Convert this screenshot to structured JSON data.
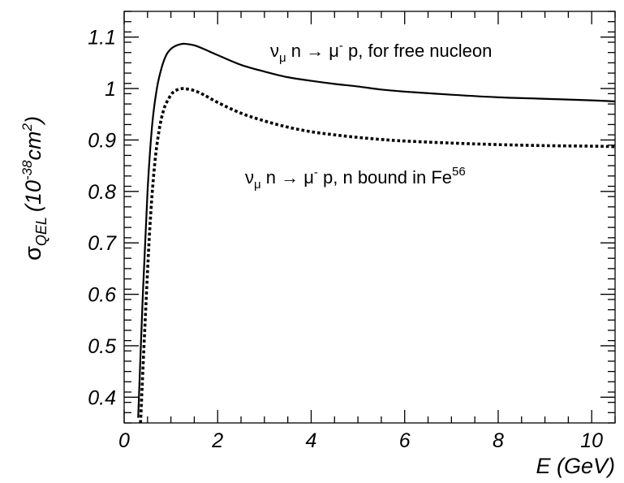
{
  "chart_data": {
    "type": "line",
    "xlabel": "E (GeV)",
    "ylabel": {
      "symbol": "σ",
      "subscript": "QEL",
      "unit_base": "(10",
      "unit_exp": "-38",
      "unit_rest": "cm",
      "unit_pow": "2",
      "unit_close": ")"
    },
    "xlim": [
      0,
      10.5
    ],
    "ylim": [
      0.35,
      1.15
    ],
    "x_ticks": [
      0,
      2,
      4,
      6,
      8,
      10
    ],
    "x_tick_labels": [
      "0",
      "2",
      "4",
      "6",
      "8",
      "10"
    ],
    "y_ticks": [
      0.4,
      0.5,
      0.6,
      0.7,
      0.8,
      0.9,
      1.0,
      1.1
    ],
    "y_tick_labels": [
      "0.4",
      "0.5",
      "0.6",
      "0.7",
      "0.8",
      "0.9",
      "1",
      "1.1"
    ],
    "grid": false,
    "series": [
      {
        "style": "solid",
        "color": "#000000",
        "x": [
          0.3,
          0.4,
          0.5,
          0.6,
          0.7,
          0.8,
          0.9,
          1.0,
          1.1,
          1.2,
          1.3,
          1.5,
          1.7,
          2.0,
          2.5,
          3.0,
          3.5,
          4.0,
          4.5,
          5.0,
          5.5,
          6.0,
          7.0,
          8.0,
          9.0,
          10.0,
          10.5
        ],
        "y": [
          0.36,
          0.6,
          0.8,
          0.93,
          1.0,
          1.04,
          1.065,
          1.077,
          1.083,
          1.086,
          1.087,
          1.084,
          1.077,
          1.065,
          1.046,
          1.033,
          1.022,
          1.015,
          1.009,
          1.004,
          0.998,
          0.994,
          0.988,
          0.983,
          0.98,
          0.977,
          0.975
        ]
      },
      {
        "style": "dotted",
        "color": "#000000",
        "x": [
          0.35,
          0.45,
          0.55,
          0.65,
          0.75,
          0.85,
          0.95,
          1.05,
          1.15,
          1.25,
          1.35,
          1.5,
          1.7,
          2.0,
          2.5,
          3.0,
          3.5,
          4.0,
          4.5,
          5.0,
          5.5,
          6.0,
          7.0,
          8.0,
          9.0,
          10.0,
          10.5
        ],
        "y": [
          0.35,
          0.55,
          0.73,
          0.85,
          0.92,
          0.96,
          0.98,
          0.993,
          0.998,
          1.0,
          0.999,
          0.996,
          0.988,
          0.973,
          0.952,
          0.937,
          0.925,
          0.916,
          0.91,
          0.905,
          0.901,
          0.898,
          0.894,
          0.891,
          0.889,
          0.888,
          0.887
        ]
      }
    ],
    "annotations": [
      {
        "id": "free",
        "parts": [
          {
            "t": "ν"
          },
          {
            "t": "μ",
            "sub": true
          },
          {
            "t": " n → μ"
          },
          {
            "t": "-",
            "sup": true
          },
          {
            "t": " p, for free nucleon"
          }
        ]
      },
      {
        "id": "bound",
        "parts": [
          {
            "t": "ν"
          },
          {
            "t": "μ",
            "sub": true
          },
          {
            "t": " n → μ"
          },
          {
            "t": "-",
            "sup": true
          },
          {
            "t": " p, n bound in Fe"
          },
          {
            "t": "56",
            "sup": true
          }
        ]
      }
    ]
  }
}
